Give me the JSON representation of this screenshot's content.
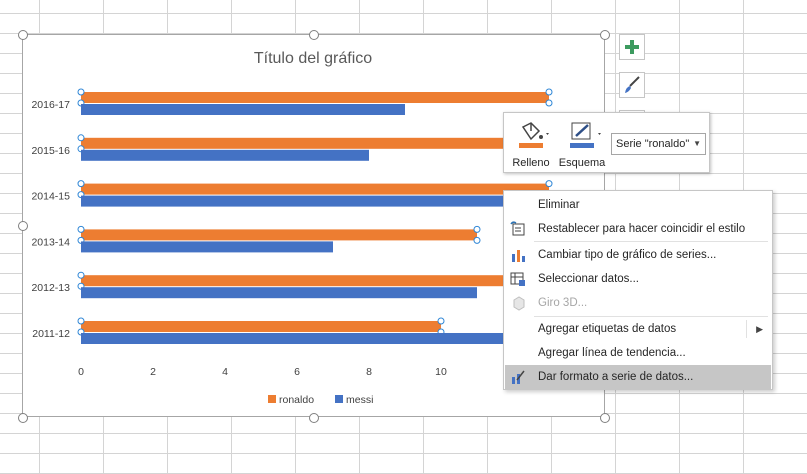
{
  "chart_data": {
    "type": "bar",
    "orientation": "horizontal",
    "title": "Título del gráfico",
    "categories": [
      "2016-17",
      "2015-16",
      "2014-15",
      "2013-14",
      "2012-13",
      "2011-12"
    ],
    "series": [
      {
        "name": "ronaldo",
        "color": "#ed7d31",
        "values": [
          13,
          13,
          13,
          11,
          13,
          10
        ]
      },
      {
        "name": "messi",
        "color": "#4472c4",
        "values": [
          9,
          8,
          13,
          7,
          11,
          13
        ]
      }
    ],
    "xlim": [
      0,
      14
    ],
    "x_ticks": [
      "0",
      "2",
      "4",
      "6",
      "8",
      "10"
    ],
    "grid": false,
    "legend_position": "bottom"
  },
  "format_toolbar": {
    "fill_label": "Relleno",
    "outline_label": "Esquema",
    "series_selected": "Serie \"ronaldo\""
  },
  "context_menu": {
    "items": [
      {
        "label": "Eliminar",
        "icon": "none",
        "disabled": false
      },
      {
        "label": "Restablecer para hacer coincidir el estilo",
        "icon": "reset-style-icon",
        "disabled": false
      },
      {
        "label": "Cambiar tipo de gráfico de series...",
        "icon": "change-chart-type-icon",
        "disabled": false
      },
      {
        "label": "Seleccionar datos...",
        "icon": "select-data-icon",
        "disabled": false
      },
      {
        "label": "Giro 3D...",
        "icon": "rotation-3d-icon",
        "disabled": true
      },
      {
        "label": "Agregar etiquetas de datos",
        "icon": "none",
        "disabled": false,
        "submenu": true
      },
      {
        "label": "Agregar línea de tendencia...",
        "icon": "none",
        "disabled": false
      },
      {
        "label": "Dar formato a serie de datos...",
        "icon": "format-series-icon",
        "disabled": false,
        "hovered": true
      }
    ]
  }
}
